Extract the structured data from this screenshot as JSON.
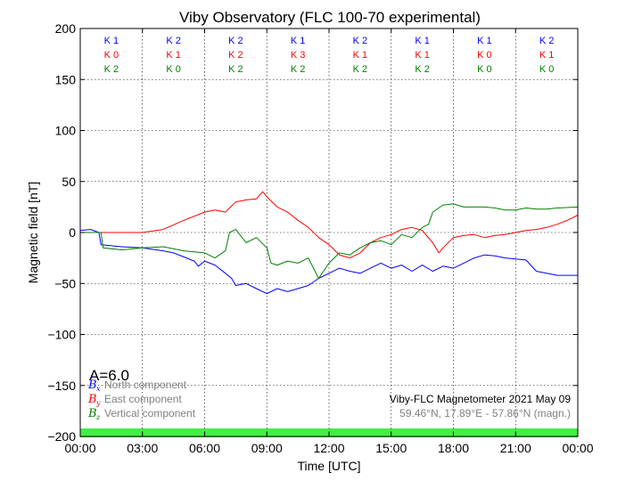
{
  "chart_data": {
    "type": "line",
    "title": "Viby Observatory (FLC 100-70 experimental)",
    "xlabel": "Time [UTC]",
    "ylabel": "Magnetic field [nT]",
    "xlim": [
      0,
      24
    ],
    "ylim": [
      -200,
      200
    ],
    "x_ticks": [
      0,
      3,
      6,
      9,
      12,
      15,
      18,
      21,
      24
    ],
    "x_tick_labels": [
      "00:00",
      "03:00",
      "06:00",
      "09:00",
      "12:00",
      "15:00",
      "18:00",
      "21:00",
      "00:00"
    ],
    "y_ticks": [
      -200,
      -150,
      -100,
      -50,
      0,
      50,
      100,
      150,
      200
    ],
    "y_tick_labels": [
      "−200",
      "−150",
      "−100",
      "−50",
      "0",
      "50",
      "100",
      "150",
      "200"
    ],
    "grid": true,
    "a_index": "A=6.0",
    "legend_position": "bottom-left",
    "k_index_rows": [
      {
        "color": "#0000ff",
        "values": [
          "K 1",
          "K 2",
          "K 2",
          "K 1",
          "K 2",
          "K 1",
          "K 1",
          "K 2"
        ]
      },
      {
        "color": "#ff0000",
        "values": [
          "K 0",
          "K 1",
          "K 2",
          "K 3",
          "K 1",
          "K 1",
          "K 0",
          "K 1"
        ]
      },
      {
        "color": "#008000",
        "values": [
          "K 2",
          "K 0",
          "K 2",
          "K 2",
          "K 2",
          "K 2",
          "K 0",
          "K 0"
        ]
      }
    ],
    "quality_bar_color": "#44ee44",
    "info_line_1": "Viby-FLC Magnetometer 2021 May 09",
    "info_line_2": "59.46°N, 17.89°E - 57.86°N (magn.)",
    "series": [
      {
        "name": "North component",
        "symbol": "B",
        "subscript": "x",
        "color": "#0000ff",
        "x": [
          0,
          0.5,
          0.9,
          1.0,
          1.5,
          2,
          3,
          4,
          4.5,
          5,
          5.5,
          5.7,
          6,
          6.5,
          7,
          7.3,
          7.5,
          8,
          8.5,
          9,
          9.5,
          10,
          10.5,
          11,
          11.5,
          12,
          12.5,
          13,
          13.5,
          14,
          14.5,
          15,
          15.5,
          16,
          16.5,
          17,
          17.5,
          18,
          18.5,
          19,
          19.5,
          20,
          20.5,
          21,
          21.5,
          22,
          22.5,
          23,
          24
        ],
        "y": [
          2,
          3,
          0,
          -12,
          -13,
          -14,
          -15,
          -18,
          -20,
          -24,
          -28,
          -33,
          -28,
          -32,
          -40,
          -45,
          -52,
          -50,
          -55,
          -60,
          -55,
          -58,
          -55,
          -52,
          -45,
          -40,
          -35,
          -38,
          -40,
          -35,
          -30,
          -35,
          -32,
          -38,
          -32,
          -38,
          -33,
          -35,
          -30,
          -25,
          -22,
          -23,
          -25,
          -26,
          -27,
          -38,
          -40,
          -42,
          -42
        ]
      },
      {
        "name": "East component",
        "symbol": "B",
        "subscript": "y",
        "color": "#ff0000",
        "x": [
          0,
          1,
          2,
          3,
          4,
          5,
          6,
          6.5,
          7,
          7.2,
          7.5,
          8,
          8.5,
          8.8,
          9,
          9.5,
          10,
          10.5,
          11,
          11.5,
          12,
          12.3,
          12.5,
          13,
          13.5,
          14,
          14.5,
          15,
          15.5,
          16,
          16.5,
          17,
          17.3,
          17.5,
          18,
          18.5,
          19,
          19.5,
          20,
          20.5,
          21,
          21.5,
          22,
          22.5,
          23,
          23.5,
          24
        ],
        "y": [
          0,
          0,
          0,
          0,
          3,
          12,
          20,
          22,
          20,
          24,
          30,
          32,
          33,
          40,
          35,
          25,
          20,
          12,
          5,
          -5,
          -12,
          -18,
          -22,
          -25,
          -20,
          -10,
          -5,
          -2,
          3,
          5,
          2,
          -10,
          -20,
          -15,
          -5,
          -3,
          -2,
          -5,
          -3,
          -2,
          0,
          2,
          3,
          5,
          8,
          12,
          17
        ]
      },
      {
        "name": "Vertical component",
        "symbol": "B",
        "subscript": "z",
        "color": "#008000",
        "x": [
          0,
          0.5,
          1.0,
          1.1,
          2,
          3,
          4,
          5,
          6,
          6.5,
          7,
          7.2,
          7.5,
          8,
          8.5,
          9,
          9.2,
          9.5,
          10,
          10.5,
          11,
          11.5,
          12,
          12.5,
          13,
          13.5,
          14,
          14.5,
          15,
          15.5,
          16,
          16.5,
          16.8,
          17,
          17.5,
          18,
          18.5,
          19,
          19.5,
          20,
          20.5,
          21,
          21.5,
          22,
          22.5,
          23,
          24
        ],
        "y": [
          0,
          0,
          0,
          -15,
          -17,
          -15,
          -14,
          -18,
          -20,
          -25,
          -18,
          0,
          3,
          -10,
          -5,
          -15,
          -30,
          -32,
          -28,
          -30,
          -25,
          -45,
          -30,
          -20,
          -22,
          -15,
          -10,
          -8,
          -12,
          -2,
          -5,
          5,
          8,
          20,
          27,
          28,
          25,
          25,
          25,
          24,
          22,
          22,
          24,
          23,
          23,
          24,
          25
        ]
      }
    ]
  }
}
